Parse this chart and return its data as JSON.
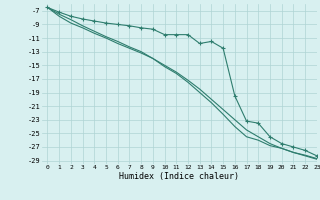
{
  "xlabel": "Humidex (Indice chaleur)",
  "bg_color": "#d8f0f0",
  "grid_color": "#afd4d4",
  "line_color": "#2e7d6e",
  "xlim": [
    -0.5,
    23
  ],
  "ylim": [
    -29.5,
    -6.0
  ],
  "xticks": [
    0,
    1,
    2,
    3,
    4,
    5,
    6,
    7,
    8,
    9,
    10,
    11,
    12,
    13,
    14,
    15,
    16,
    17,
    18,
    19,
    20,
    21,
    22,
    23
  ],
  "yticks": [
    -7,
    -9,
    -11,
    -13,
    -15,
    -17,
    -19,
    -21,
    -23,
    -25,
    -27,
    -29
  ],
  "line1_x": [
    0,
    1,
    2,
    3,
    4,
    5,
    6,
    7,
    8,
    9,
    10,
    11,
    12,
    13,
    14,
    15,
    16,
    17,
    18,
    19,
    20,
    21,
    22,
    23
  ],
  "line1_y": [
    -6.5,
    -7.2,
    -7.8,
    -8.2,
    -8.5,
    -8.8,
    -9.0,
    -9.2,
    -9.5,
    -9.7,
    -10.5,
    -10.5,
    -10.5,
    -11.8,
    -11.5,
    -12.5,
    -19.5,
    -23.2,
    -23.5,
    -25.5,
    -26.5,
    -27.0,
    -27.5,
    -28.3
  ],
  "line2_x": [
    0,
    1,
    2,
    3,
    4,
    5,
    6,
    7,
    8,
    9,
    10,
    11,
    12,
    13,
    14,
    15,
    16,
    17,
    18,
    19,
    20,
    21,
    22,
    23
  ],
  "line2_y": [
    -6.5,
    -7.8,
    -8.8,
    -9.5,
    -10.3,
    -11.0,
    -11.8,
    -12.5,
    -13.2,
    -14.0,
    -15.0,
    -16.0,
    -17.2,
    -18.5,
    -20.0,
    -21.5,
    -23.0,
    -24.5,
    -25.5,
    -26.5,
    -27.2,
    -27.8,
    -28.3,
    -28.8
  ],
  "line3_x": [
    0,
    1,
    2,
    3,
    4,
    5,
    6,
    7,
    8,
    9,
    10,
    11,
    12,
    13,
    14,
    15,
    16,
    17,
    18,
    19,
    20,
    21,
    22,
    23
  ],
  "line3_y": [
    -6.5,
    -7.5,
    -8.3,
    -9.2,
    -10.0,
    -10.8,
    -11.5,
    -12.3,
    -13.0,
    -14.0,
    -15.2,
    -16.2,
    -17.5,
    -19.0,
    -20.5,
    -22.2,
    -24.0,
    -25.5,
    -26.0,
    -26.8,
    -27.2,
    -27.8,
    -28.2,
    -28.7
  ]
}
